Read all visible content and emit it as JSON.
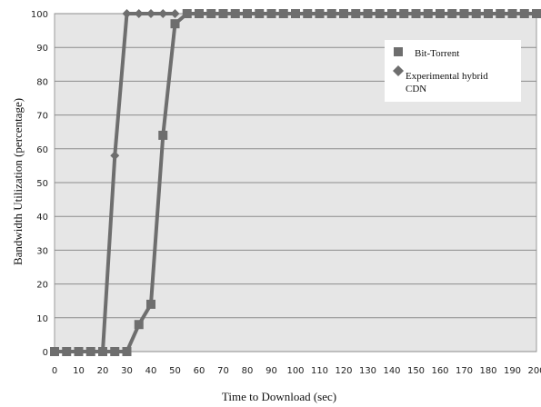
{
  "chart_data": {
    "type": "line",
    "title": "",
    "xlabel": "Time to Download (sec)",
    "ylabel": "Bandwidth Utilization (percentage)",
    "xlim": [
      0,
      200
    ],
    "ylim": [
      0,
      100
    ],
    "x_ticks": [
      "0",
      "10",
      "20",
      "30",
      "40",
      "50",
      "60",
      "70",
      "80",
      "90",
      "100",
      "110",
      "120",
      "130",
      "140",
      "150",
      "160",
      "170",
      "180",
      "190",
      "200"
    ],
    "y_ticks": [
      "0",
      "10",
      "20",
      "30",
      "40",
      "50",
      "60",
      "70",
      "80",
      "90",
      "100"
    ],
    "grid": "horizontal",
    "legend": "top-right",
    "series": [
      {
        "name": "Bit-Torrent",
        "marker": "square",
        "color": "#6e6e6e",
        "x": [
          0,
          5,
          10,
          15,
          20,
          25,
          30,
          35,
          40,
          45,
          50,
          55,
          60,
          65,
          70,
          75,
          80,
          85,
          90,
          95,
          100,
          105,
          110,
          115,
          120,
          125,
          130,
          135,
          140,
          145,
          150,
          155,
          160,
          165,
          170,
          175,
          180,
          185,
          190,
          195,
          200
        ],
        "y": [
          0,
          0,
          0,
          0,
          0,
          0,
          0,
          8,
          14,
          64,
          97,
          100,
          100,
          100,
          100,
          100,
          100,
          100,
          100,
          100,
          100,
          100,
          100,
          100,
          100,
          100,
          100,
          100,
          100,
          100,
          100,
          100,
          100,
          100,
          100,
          100,
          100,
          100,
          100,
          100,
          100
        ]
      },
      {
        "name": "Experimental hybrid CDN",
        "marker": "diamond",
        "color": "#6e6e6e",
        "x": [
          0,
          5,
          10,
          15,
          20,
          25,
          30,
          35,
          40,
          45,
          50
        ],
        "y": [
          0,
          0,
          0,
          0,
          0,
          58,
          100,
          100,
          100,
          100,
          100
        ]
      }
    ]
  }
}
